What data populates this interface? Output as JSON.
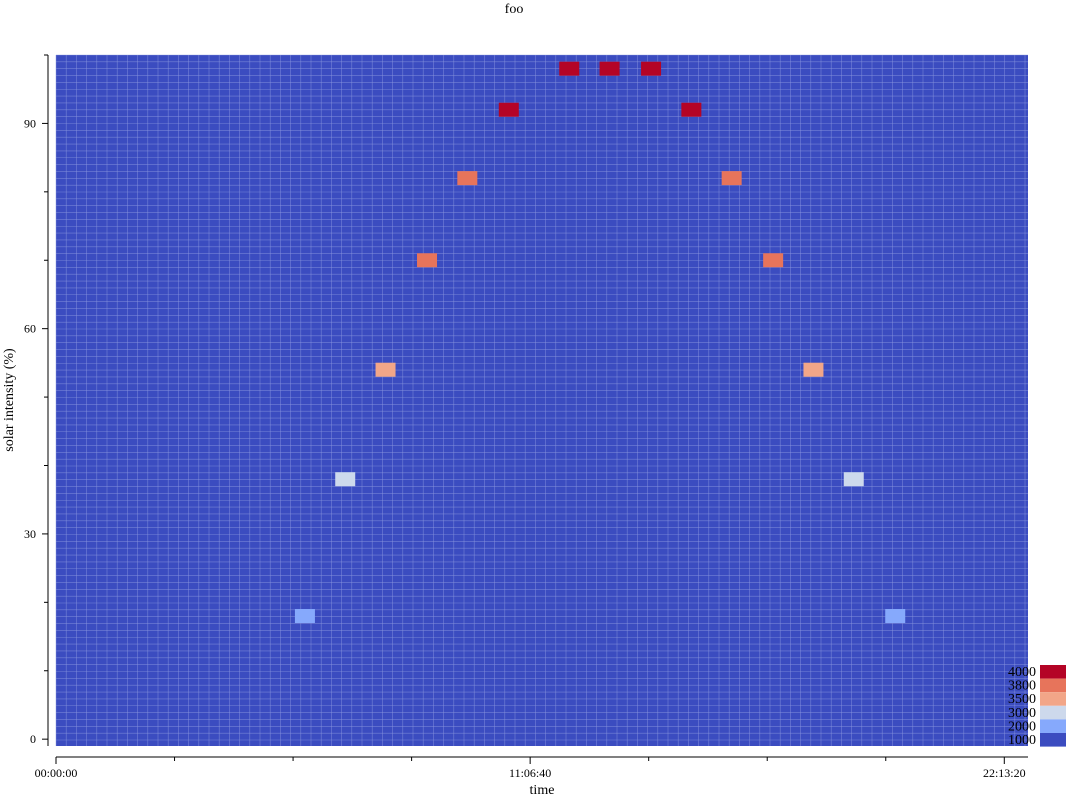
{
  "chart_data": {
    "type": "heatmap",
    "title": "foo",
    "xlabel": "time",
    "ylabel": "solar intensity (%)",
    "xlim": [
      0,
      82000
    ],
    "ylim": [
      -1,
      100
    ],
    "x_tick_labels": [
      {
        "value": 0,
        "label": "00:00:00"
      },
      {
        "value": 40000,
        "label": "11:06:40"
      },
      {
        "value": 80000,
        "label": "22:13:20"
      }
    ],
    "y_tick_labels": [
      {
        "value": 0,
        "label": "0"
      },
      {
        "value": 30,
        "label": "30"
      },
      {
        "value": 60,
        "label": "60"
      },
      {
        "value": 90,
        "label": "90"
      }
    ],
    "background_value": 1000,
    "cells": [
      {
        "x": 21000,
        "y": 18,
        "value": 2000
      },
      {
        "x": 24400,
        "y": 38,
        "value": 3000
      },
      {
        "x": 27800,
        "y": 54,
        "value": 3500
      },
      {
        "x": 31300,
        "y": 70,
        "value": 3800
      },
      {
        "x": 34700,
        "y": 82,
        "value": 3800
      },
      {
        "x": 38200,
        "y": 92,
        "value": 4000
      },
      {
        "x": 43300,
        "y": 98,
        "value": 4000
      },
      {
        "x": 46700,
        "y": 98,
        "value": 4000
      },
      {
        "x": 50200,
        "y": 98,
        "value": 4000
      },
      {
        "x": 53600,
        "y": 92,
        "value": 4000
      },
      {
        "x": 57000,
        "y": 82,
        "value": 3800
      },
      {
        "x": 60500,
        "y": 70,
        "value": 3800
      },
      {
        "x": 63900,
        "y": 54,
        "value": 3500
      },
      {
        "x": 67300,
        "y": 38,
        "value": 3000
      },
      {
        "x": 70800,
        "y": 18,
        "value": 2000
      }
    ],
    "legend": {
      "placement": "bottom-right",
      "entries": [
        {
          "label": "4000",
          "color": "#b40426"
        },
        {
          "label": "3800",
          "color": "#e7745b"
        },
        {
          "label": "3500",
          "color": "#f2a688"
        },
        {
          "label": "3000",
          "color": "#cdd9ec"
        },
        {
          "label": "2000",
          "color": "#86a9fc"
        },
        {
          "label": "1000",
          "color": "#3b4cc0"
        }
      ]
    },
    "grid": true,
    "colors": {
      "background_cell": "#3b4cc0",
      "grid": "#8a96dd"
    }
  }
}
